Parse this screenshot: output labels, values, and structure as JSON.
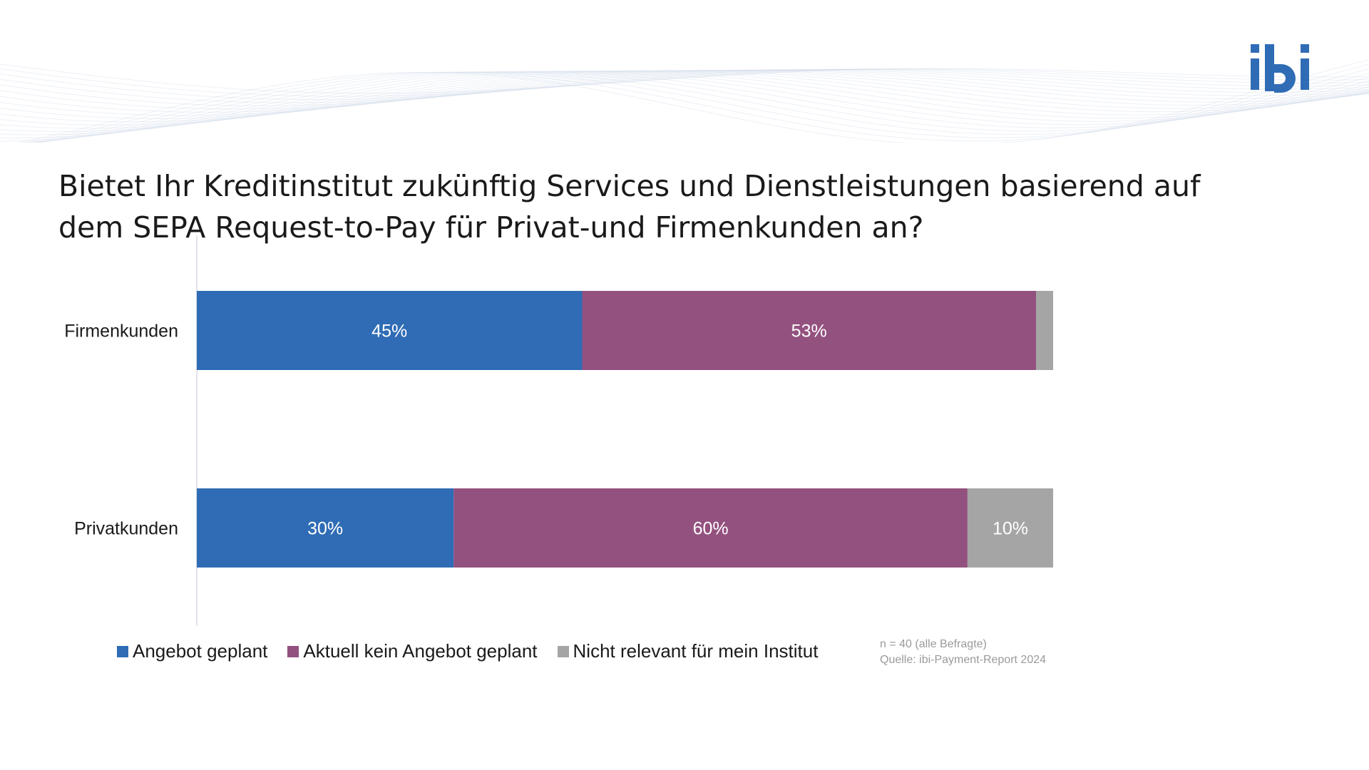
{
  "brand": {
    "logo_text": "ibi",
    "logo_color": "#2f6cb5"
  },
  "colors": {
    "angebot_geplant": "#2f6cb5",
    "kein_angebot": "#93517f",
    "nicht_relevant": "#a5a5a5"
  },
  "chart_data": {
    "type": "bar",
    "orientation": "horizontal",
    "stacked": true,
    "title": "Bietet Ihr Kreditinstitut zukünftig Services und Dienstleistungen basierend auf dem SEPA Request-to-Pay für Privat-und Firmenkunden an?",
    "title_lines": [
      "Bietet Ihr Kreditinstitut zukünftig Services und Dienstleistungen basierend auf",
      "dem SEPA Request-to-Pay für Privat-und Firmenkunden an?"
    ],
    "categories": [
      "Firmenkunden",
      "Privatkunden"
    ],
    "series": [
      {
        "name": "Angebot geplant",
        "values": [
          45,
          30
        ],
        "labels": [
          "45%",
          "30%"
        ],
        "color": "#2f6cb5"
      },
      {
        "name": "Aktuell kein Angebot geplant",
        "values": [
          53,
          60
        ],
        "labels": [
          "53%",
          "60%"
        ],
        "color": "#93517f"
      },
      {
        "name": "Nicht relevant für mein Institut",
        "values": [
          2,
          10
        ],
        "labels": [
          "",
          "10%"
        ],
        "color": "#a5a5a5"
      }
    ],
    "xlim": [
      0,
      100
    ],
    "grid": false,
    "legend_position": "bottom"
  },
  "footnote": {
    "sample": "n = 40 (alle Befragte)",
    "source": "Quelle: ibi-Payment-Report 2024"
  }
}
